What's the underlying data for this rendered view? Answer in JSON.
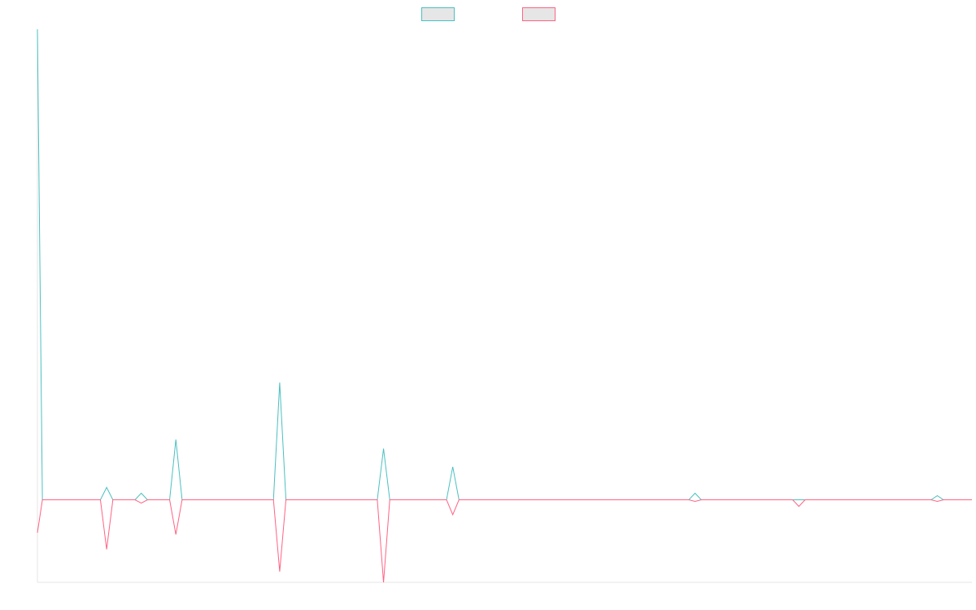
{
  "chart_data": {
    "type": "line",
    "title": "",
    "xlabel": "",
    "ylabel": "",
    "grid": false,
    "legend_placement": "top-center",
    "x": [
      0,
      1,
      2,
      3,
      4,
      5,
      6,
      7,
      8,
      9,
      10,
      11,
      12,
      13,
      14,
      15,
      16,
      17,
      18,
      19,
      20,
      21,
      22,
      23,
      24,
      25,
      26,
      27
    ],
    "xlim": [
      0,
      27
    ],
    "ylim": [
      -100,
      570
    ],
    "series": [
      {
        "color": "#4bc0c0",
        "values": [
          570,
          0,
          15,
          8,
          73,
          0,
          0,
          142,
          0,
          0,
          62,
          0,
          40,
          0,
          0,
          0,
          0,
          0,
          0,
          8,
          0,
          0,
          0,
          0,
          0,
          0,
          5,
          0
        ],
        "fill": "#e6e6e6"
      },
      {
        "color": "#ff6384",
        "values": [
          -40,
          0,
          -60,
          -4,
          -42,
          0,
          0,
          -87,
          0,
          0,
          -100,
          0,
          -18,
          0,
          0,
          0,
          0,
          0,
          0,
          -2,
          0,
          0,
          -8,
          0,
          0,
          0,
          -2,
          0
        ],
        "fill": "#e6e6e6"
      }
    ]
  }
}
